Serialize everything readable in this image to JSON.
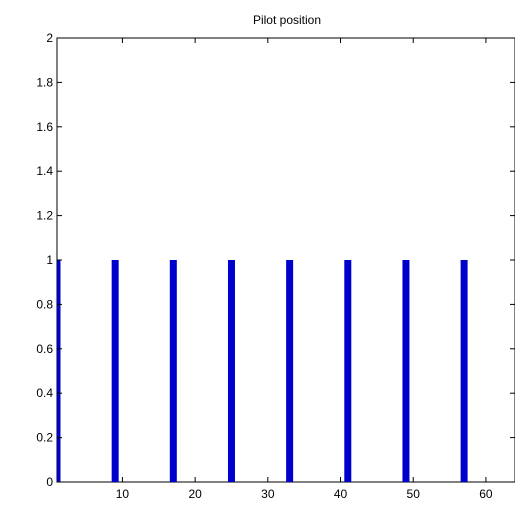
{
  "chart_data": {
    "type": "bar",
    "title": "Pilot position",
    "xlabel": "",
    "ylabel": "",
    "x": [
      1,
      9,
      17,
      25,
      33,
      41,
      49,
      57
    ],
    "values": [
      1,
      1,
      1,
      1,
      1,
      1,
      1,
      1
    ],
    "xlim": [
      1,
      64
    ],
    "ylim": [
      0,
      2
    ],
    "xticks": [
      10,
      20,
      30,
      40,
      50,
      60
    ],
    "yticks": [
      0,
      0.2,
      0.4,
      0.6,
      0.8,
      1,
      1.2,
      1.4,
      1.6,
      1.8,
      2
    ],
    "grid": false,
    "bar_color": "#0000cc",
    "axis_color": "#000000",
    "background": "#ffffff"
  }
}
